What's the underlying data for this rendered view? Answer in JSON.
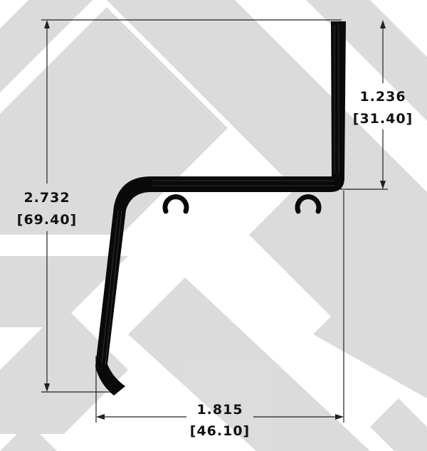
{
  "colors": {
    "background": "#ffffff",
    "watermark": "#d9d9d9",
    "profile": "#0a0a0a",
    "dimension_line": "#222222",
    "text": "#111111"
  },
  "dimensions": {
    "height_total": {
      "inch": "2.732",
      "mm": "[69.40]"
    },
    "height_upper": {
      "inch": "1.236",
      "mm": "[31.40]"
    },
    "width": {
      "inch": "1.815",
      "mm": "[46.10]"
    }
  }
}
